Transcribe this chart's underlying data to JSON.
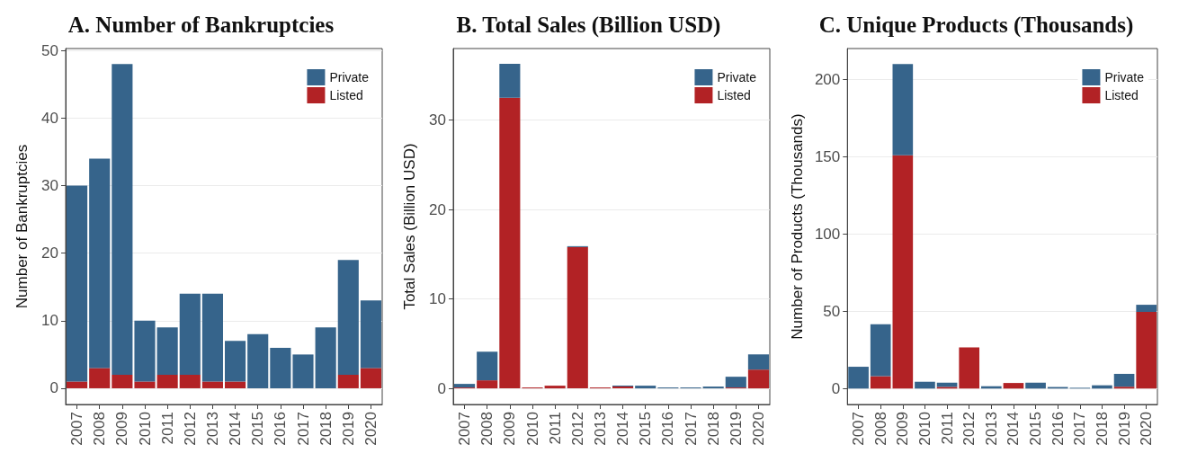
{
  "chart_data": [
    {
      "type": "bar",
      "title": "A. Number of Bankruptcies",
      "ylabel": "Number of Bankruptcies",
      "categories": [
        "2007",
        "2008",
        "2009",
        "2010",
        "2011",
        "2012",
        "2013",
        "2014",
        "2015",
        "2016",
        "2017",
        "2018",
        "2019",
        "2020"
      ],
      "stacked": true,
      "series": [
        {
          "name": "Listed",
          "color": "#b22225",
          "values": [
            1,
            3,
            2,
            1,
            2,
            2,
            1,
            1,
            0,
            0,
            0,
            0,
            2,
            3
          ]
        },
        {
          "name": "Private",
          "color": "#36648b",
          "values": [
            29,
            31,
            46,
            9,
            7,
            12,
            13,
            6,
            8,
            6,
            5,
            9,
            17,
            10
          ]
        }
      ],
      "ylim": [
        -2.4,
        50.3
      ],
      "yticks": [
        0,
        10,
        20,
        30,
        40,
        50
      ],
      "grid": "y",
      "legend": "top right"
    },
    {
      "type": "bar",
      "title": "B. Total Sales (Billion USD)",
      "ylabel": "Total Sales (Billion USD)",
      "categories": [
        "2007",
        "2008",
        "2009",
        "2010",
        "2011",
        "2012",
        "2013",
        "2014",
        "2015",
        "2016",
        "2017",
        "2018",
        "2019",
        "2020"
      ],
      "stacked": true,
      "series": [
        {
          "name": "Listed",
          "color": "#b22225",
          "values": [
            0.1,
            0.9,
            32.5,
            0.1,
            0.3,
            15.8,
            0.1,
            0.2,
            0,
            0,
            0,
            0,
            0.1,
            2.1
          ]
        },
        {
          "name": "Private",
          "color": "#36648b",
          "values": [
            0.4,
            3.2,
            3.8,
            0,
            0,
            0.1,
            0,
            0.1,
            0.3,
            0.1,
            0.1,
            0.2,
            1.2,
            1.7
          ]
        }
      ],
      "ylim": [
        -1.8,
        38
      ],
      "yticks": [
        0,
        10,
        20,
        30
      ],
      "grid": "y",
      "legend": "top right"
    },
    {
      "type": "bar",
      "title": "C. Unique Products (Thousands)",
      "ylabel": "Number of Products (Thousands)",
      "categories": [
        "2007",
        "2008",
        "2009",
        "2010",
        "2011",
        "2012",
        "2013",
        "2014",
        "2015",
        "2016",
        "2017",
        "2018",
        "2019",
        "2020"
      ],
      "stacked": true,
      "series": [
        {
          "name": "Listed",
          "color": "#b22225",
          "values": [
            0,
            8,
            151,
            0,
            1.1,
            26.7,
            0,
            3.6,
            0,
            0,
            0,
            0,
            1.2,
            49.6
          ]
        },
        {
          "name": "Private",
          "color": "#36648b",
          "values": [
            14.1,
            33.6,
            59,
            4.4,
            2.7,
            0,
            1.5,
            0,
            3.8,
            1,
            0.5,
            2.1,
            8.3,
            4.6
          ]
        }
      ],
      "ylim": [
        -10.3,
        220
      ],
      "yticks": [
        0,
        50,
        100,
        150,
        200
      ],
      "grid": "y",
      "legend": "top right"
    }
  ]
}
